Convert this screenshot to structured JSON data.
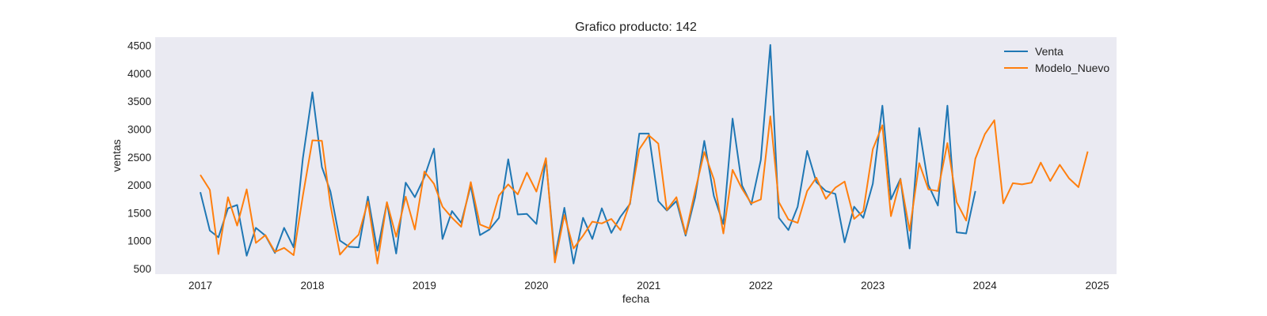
{
  "chart_data": {
    "type": "line",
    "title": "Grafico producto: 142",
    "xlabel": "fecha",
    "ylabel": "ventas",
    "xlim": [
      "2016-08-07",
      "2025-03-05"
    ],
    "ylim": [
      400,
      4650
    ],
    "x_ticks": [
      "2017",
      "2018",
      "2019",
      "2020",
      "2021",
      "2022",
      "2023",
      "2024",
      "2025"
    ],
    "y_ticks": [
      500,
      1000,
      1500,
      2000,
      2500,
      3000,
      3500,
      4000,
      4500
    ],
    "grid": false,
    "background": "#eaeaf2",
    "legend_position": "top-right",
    "series": [
      {
        "name": "Venta",
        "color": "#1f77b4",
        "start": "2017-01",
        "values": [
          1870,
          1180,
          1060,
          1580,
          1640,
          730,
          1230,
          1090,
          780,
          1230,
          880,
          2470,
          3660,
          2320,
          1880,
          1000,
          890,
          880,
          1790,
          820,
          1680,
          770,
          2040,
          1780,
          2140,
          2650,
          1030,
          1530,
          1320,
          1990,
          1100,
          1200,
          1410,
          2460,
          1470,
          1480,
          1300,
          2470,
          690,
          1590,
          590,
          1410,
          1030,
          1580,
          1140,
          1430,
          1660,
          2920,
          2920,
          1710,
          1540,
          1710,
          1090,
          1780,
          2790,
          1800,
          1300,
          3190,
          1990,
          1650,
          2450,
          4510,
          1410,
          1190,
          1610,
          2610,
          2050,
          1890,
          1840,
          970,
          1610,
          1410,
          2020,
          3420,
          1740,
          2110,
          860,
          3020,
          2000,
          1630,
          3420,
          1150,
          1130,
          1890
        ]
      },
      {
        "name": "Modelo_Nuevo",
        "color": "#ff7f0e",
        "start": "2017-01",
        "values": [
          2180,
          1910,
          760,
          1780,
          1270,
          1920,
          960,
          1100,
          800,
          870,
          740,
          1800,
          2800,
          2790,
          1640,
          750,
          940,
          1110,
          1700,
          590,
          1690,
          1070,
          1790,
          1200,
          2240,
          2020,
          1610,
          1410,
          1250,
          2050,
          1290,
          1220,
          1810,
          2010,
          1830,
          2220,
          1880,
          2480,
          610,
          1460,
          860,
          1090,
          1340,
          1310,
          1390,
          1190,
          1680,
          2640,
          2890,
          2740,
          1550,
          1780,
          1120,
          1890,
          2590,
          2100,
          1130,
          2270,
          1930,
          1670,
          1740,
          3230,
          1690,
          1380,
          1320,
          1890,
          2130,
          1750,
          1950,
          2060,
          1390,
          1530,
          2640,
          3070,
          1440,
          2100,
          1180,
          2390,
          1920,
          1890,
          2750,
          1690,
          1360,
          2470,
          2910,
          3160,
          1670,
          2030,
          2010,
          2040,
          2400,
          2070,
          2360,
          2120,
          1960,
          2600
        ]
      }
    ]
  }
}
